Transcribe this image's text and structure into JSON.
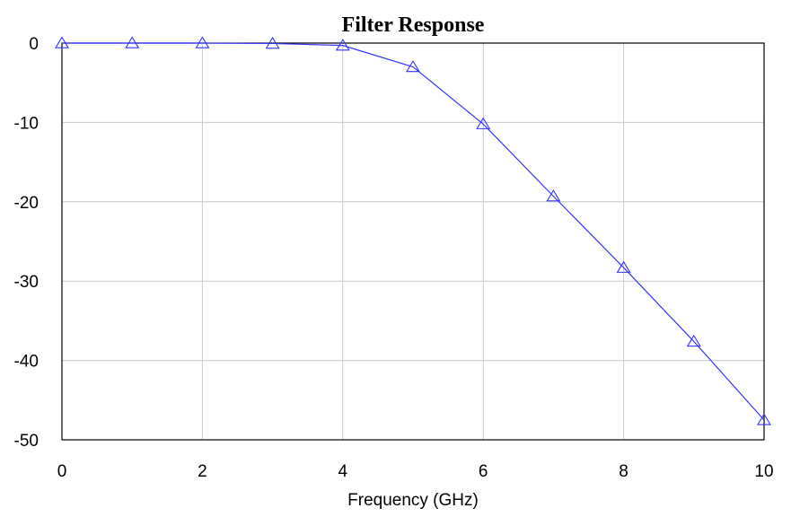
{
  "colors": {
    "series": "#3333ff",
    "grid": "#c8c8c8",
    "axis": "#000000"
  },
  "chart_data": {
    "type": "line",
    "title": "Filter Response",
    "xlabel": "Frequency (GHz)",
    "ylabel": "",
    "xlim": [
      0,
      10
    ],
    "ylim": [
      -50,
      0
    ],
    "xticks": [
      0,
      2,
      4,
      6,
      8,
      10
    ],
    "yticks": [
      0,
      -10,
      -20,
      -30,
      -40,
      -50
    ],
    "grid": true,
    "legend": "none",
    "series": [
      {
        "marker": "triangle-open",
        "x": [
          0,
          1,
          2,
          3,
          4,
          5,
          6,
          7,
          8,
          9,
          10
        ],
        "y": [
          0,
          0,
          0,
          -0.05,
          -0.3,
          -3.0,
          -10.2,
          -19.3,
          -28.3,
          -37.6,
          -47.5
        ]
      }
    ]
  }
}
